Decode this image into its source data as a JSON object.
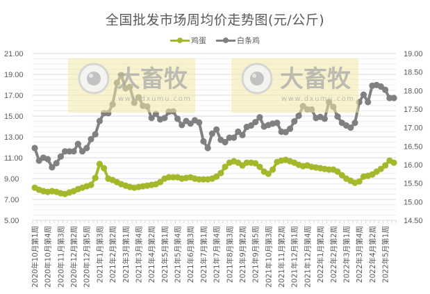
{
  "chart_data": {
    "type": "line",
    "title": "全国批发市场周均价走势图(元/公斤)",
    "xlabel": "",
    "ylabel": "",
    "ylim": [
      5.0,
      21.0
    ],
    "y2lim": [
      14.5,
      19.0
    ],
    "yticks": [
      "21.00",
      "19.00",
      "17.00",
      "15.00",
      "13.00",
      "11.00",
      "9.00",
      "7.00",
      "5.00"
    ],
    "y2ticks": [
      "19.00",
      "18.50",
      "18.00",
      "17.50",
      "17.00",
      "16.50",
      "16.00",
      "15.50",
      "15.00",
      "14.50"
    ],
    "grid": true,
    "legend_position": "top",
    "x_tick_labels": [
      "2020年10月第1周",
      "2020年10月第4周",
      "2020年11月第3周",
      "2020年12月第2周",
      "2020年12月第5周",
      "2021年1月第3周",
      "2021年2月第2周",
      "2021年3月第1周",
      "2021年3月第4周",
      "2021年4月第2周",
      "2021年5月第1周",
      "2021年5月第4周",
      "2021年6月第3周",
      "2021年7月第1周",
      "2021年7月第4周",
      "2021年8月第3周",
      "2021年9月第2周",
      "2021年9月第5周",
      "2021年10月第3周",
      "2021年11月第2周",
      "2021年12月第1周",
      "2021年12月第4周",
      "2022年1月第2周",
      "2022年2月第2周",
      "2022年3月第1周",
      "2022年3月第4周",
      "2022年4月第2周",
      "2022年5月第1周"
    ],
    "label_every": 3,
    "series": [
      {
        "name": "鸡蛋",
        "axis": "left",
        "color": "#a5b82c",
        "values": [
          8.13,
          7.93,
          7.8,
          7.73,
          7.8,
          7.73,
          7.6,
          7.53,
          7.67,
          7.8,
          8.0,
          8.13,
          8.27,
          8.4,
          9.07,
          10.4,
          10.0,
          9.0,
          8.87,
          8.67,
          8.47,
          8.33,
          8.2,
          8.13,
          8.2,
          8.27,
          8.33,
          8.4,
          8.47,
          8.67,
          9.0,
          9.13,
          9.13,
          9.13,
          9.0,
          9.07,
          9.13,
          9.0,
          8.93,
          8.93,
          8.93,
          9.0,
          9.2,
          9.53,
          10.13,
          10.53,
          10.67,
          10.53,
          10.27,
          10.53,
          10.53,
          10.47,
          10.13,
          9.67,
          9.47,
          9.87,
          10.6,
          10.73,
          10.8,
          10.67,
          10.53,
          10.33,
          10.2,
          10.27,
          10.13,
          10.07,
          10.0,
          9.93,
          9.87,
          9.87,
          9.67,
          9.33,
          9.0,
          8.8,
          8.6,
          8.73,
          9.2,
          9.27,
          9.4,
          9.67,
          9.93,
          10.27,
          10.73,
          10.53
        ]
      },
      {
        "name": "白条鸡",
        "axis": "right",
        "color": "#808080",
        "values": [
          16.45,
          16.11,
          16.19,
          16.15,
          15.93,
          16.04,
          16.22,
          16.36,
          16.36,
          16.36,
          16.56,
          16.36,
          16.45,
          16.69,
          16.82,
          17.18,
          17.39,
          17.39,
          17.63,
          18.21,
          18.42,
          18.06,
          18.1,
          17.67,
          17.82,
          17.59,
          17.57,
          17.26,
          17.37,
          17.22,
          17.26,
          17.43,
          17.44,
          17.24,
          17.07,
          17.18,
          17.11,
          17.2,
          17.14,
          16.63,
          16.45,
          16.84,
          16.95,
          16.67,
          16.61,
          16.73,
          16.73,
          16.89,
          16.8,
          17.02,
          17.06,
          17.15,
          17.28,
          17.03,
          17.07,
          17.11,
          17.13,
          16.89,
          16.88,
          16.97,
          17.17,
          17.32,
          17.58,
          17.49,
          17.49,
          17.26,
          17.29,
          17.24,
          17.69,
          17.56,
          17.3,
          17.13,
          17.06,
          17.0,
          17.13,
          17.69,
          17.89,
          17.69,
          18.13,
          18.15,
          18.11,
          18.02,
          17.8,
          17.8
        ]
      }
    ]
  },
  "watermarks": [
    {
      "brand": "大畜牧",
      "url": "www.dxumu.com"
    },
    {
      "brand": "大畜牧",
      "url": "www.dxumu.com"
    }
  ],
  "colors": {
    "egg": "#a5b82c",
    "chicken": "#808080",
    "grid": "#d9d9d9",
    "text": "#595959",
    "watermark_bg": "#f3e9a6"
  }
}
